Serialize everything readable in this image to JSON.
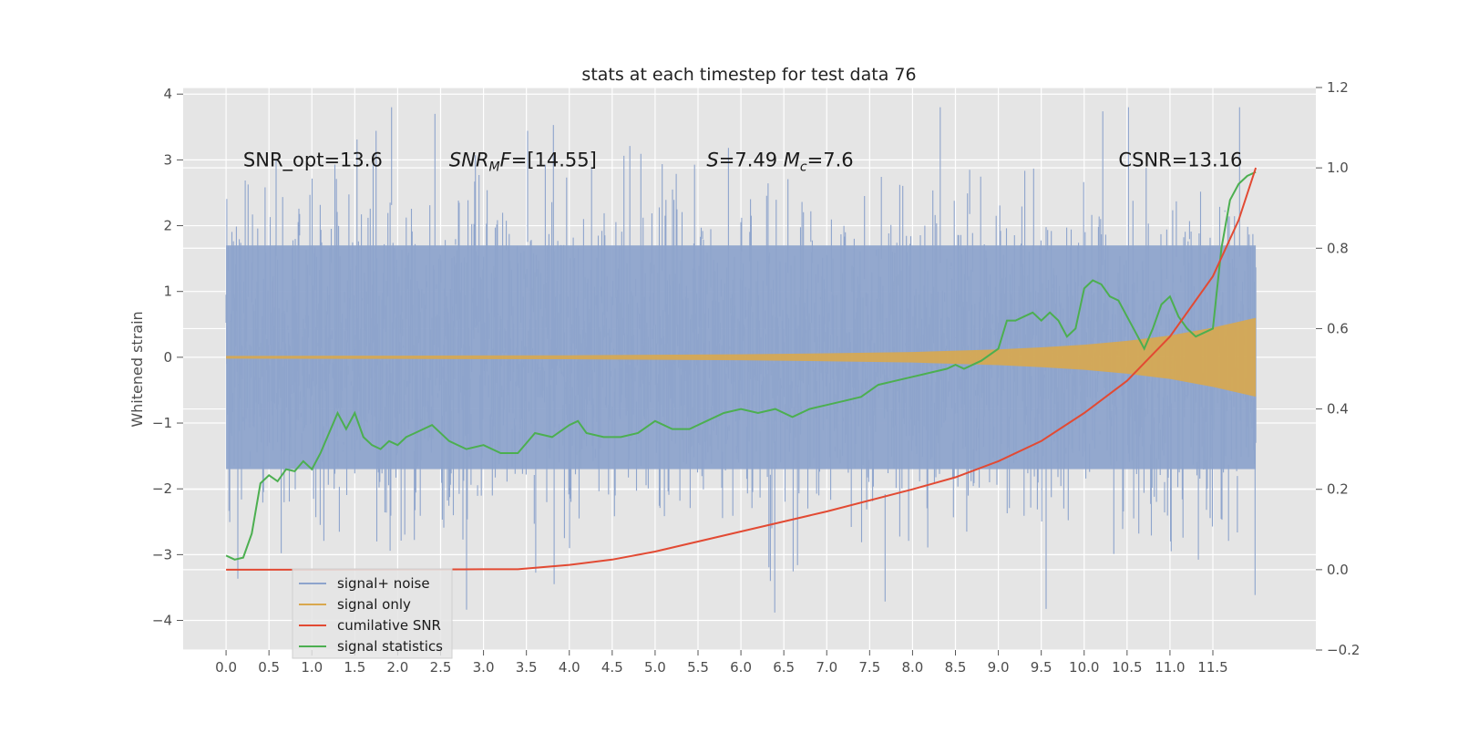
{
  "colors": {
    "background_plot": "#e5e5e5",
    "grid": "#ffffff",
    "noise": "#8ea4cc",
    "signal_only": "#d9a84e",
    "cumulative_snr": "#e24a33",
    "signal_statistics": "#4caf50"
  },
  "chart_data": {
    "type": "line",
    "title": "stats at each timestep for test data 76",
    "ylabel": "Whitened strain",
    "xlabel": "",
    "xlim": [
      -0.5,
      12.7
    ],
    "ylim": [
      -4.45,
      4.1
    ],
    "ylim_right": [
      -0.2,
      1.2
    ],
    "x_ticks": [
      0.0,
      0.5,
      1.0,
      1.5,
      2.0,
      2.5,
      3.0,
      3.5,
      4.0,
      4.5,
      5.0,
      5.5,
      6.0,
      6.5,
      7.0,
      7.5,
      8.0,
      8.5,
      9.0,
      9.5,
      10.0,
      10.5,
      11.0,
      11.5
    ],
    "x_tick_labels": [
      "0.0",
      "0.5",
      "1.0",
      "1.5",
      "2.0",
      "2.5",
      "3.0",
      "3.5",
      "4.0",
      "4.5",
      "5.0",
      "5.5",
      "6.0",
      "6.5",
      "7.0",
      "7.5",
      "8.0",
      "8.5",
      "9.0",
      "9.5",
      "10.0",
      "10.5",
      "11.0",
      "11.5"
    ],
    "y_ticks_left": [
      4,
      3,
      2,
      1,
      0,
      -1,
      -2,
      -3,
      -4
    ],
    "y_tick_labels_left": [
      "4",
      "3",
      "2",
      "1",
      "0",
      "−1",
      "−2",
      "−3",
      "−4"
    ],
    "y_ticks_right": [
      1.2,
      1.0,
      0.8,
      0.6,
      0.4,
      0.2,
      0.0,
      -0.2
    ],
    "y_tick_labels_right": [
      "1.2",
      "1.0",
      "0.8",
      "0.6",
      "0.4",
      "0.2",
      "0.0",
      "−0.2"
    ],
    "grid": true,
    "legend_placement": "lower-left",
    "annotations": [
      {
        "id": "snr-opt",
        "text": "SNR_opt=13.6",
        "x": 0.2,
        "y": 3.0
      },
      {
        "id": "snr-mf",
        "text": "SNR_MF=[14.55]",
        "x": 2.6,
        "y": 3.0
      },
      {
        "id": "s-mc",
        "text": "S=7.49   M_c=7.6",
        "x": 5.6,
        "y": 3.0
      },
      {
        "id": "csnr",
        "text": "CSNR=13.16",
        "x": 10.4,
        "y": 3.0
      }
    ],
    "series": [
      {
        "name": "signal+ noise",
        "axis": "left",
        "kind": "noise-band",
        "x_range": [
          0.0,
          12.0
        ],
        "typical_band": [
          -1.7,
          1.7
        ],
        "extremes": [
          -4.1,
          3.8
        ],
        "note_values": "dense random strain samples"
      },
      {
        "name": "signal only",
        "axis": "left",
        "kind": "chirp-envelope",
        "x": [
          0.0,
          2.0,
          4.0,
          6.0,
          7.0,
          8.0,
          9.0,
          9.5,
          10.0,
          10.5,
          11.0,
          11.5,
          12.0
        ],
        "amplitude": [
          0.02,
          0.025,
          0.03,
          0.045,
          0.06,
          0.08,
          0.12,
          0.15,
          0.19,
          0.25,
          0.33,
          0.45,
          0.6
        ]
      },
      {
        "name": "cumilative SNR",
        "axis": "right",
        "x": [
          0.0,
          1.0,
          2.0,
          3.0,
          3.4,
          4.0,
          4.5,
          5.0,
          6.0,
          7.0,
          8.0,
          8.5,
          9.0,
          9.5,
          10.0,
          10.5,
          11.0,
          11.5,
          11.8,
          12.0
        ],
        "values": [
          0.0,
          0.0,
          0.0005,
          0.001,
          0.001,
          0.012,
          0.025,
          0.045,
          0.095,
          0.145,
          0.2,
          0.23,
          0.27,
          0.32,
          0.39,
          0.47,
          0.58,
          0.73,
          0.87,
          1.0
        ]
      },
      {
        "name": "signal statistics",
        "axis": "right",
        "x": [
          0.0,
          0.1,
          0.2,
          0.3,
          0.4,
          0.5,
          0.6,
          0.7,
          0.8,
          0.9,
          1.0,
          1.1,
          1.2,
          1.3,
          1.4,
          1.5,
          1.6,
          1.7,
          1.8,
          1.9,
          2.0,
          2.1,
          2.2,
          2.4,
          2.6,
          2.8,
          3.0,
          3.2,
          3.4,
          3.6,
          3.8,
          4.0,
          4.1,
          4.2,
          4.4,
          4.6,
          4.8,
          5.0,
          5.2,
          5.4,
          5.6,
          5.8,
          6.0,
          6.2,
          6.4,
          6.6,
          6.8,
          7.0,
          7.2,
          7.4,
          7.6,
          7.8,
          8.0,
          8.2,
          8.4,
          8.5,
          8.6,
          8.8,
          9.0,
          9.1,
          9.2,
          9.3,
          9.4,
          9.5,
          9.6,
          9.7,
          9.8,
          9.9,
          10.0,
          10.1,
          10.2,
          10.3,
          10.4,
          10.5,
          10.6,
          10.7,
          10.8,
          10.9,
          11.0,
          11.1,
          11.2,
          11.3,
          11.5,
          11.6,
          11.7,
          11.8,
          11.9,
          12.0
        ],
        "values": [
          0.035,
          0.025,
          0.03,
          0.09,
          0.215,
          0.235,
          0.22,
          0.25,
          0.245,
          0.27,
          0.25,
          0.29,
          0.34,
          0.39,
          0.35,
          0.39,
          0.33,
          0.31,
          0.3,
          0.32,
          0.31,
          0.33,
          0.34,
          0.36,
          0.32,
          0.3,
          0.31,
          0.29,
          0.29,
          0.34,
          0.33,
          0.36,
          0.37,
          0.34,
          0.33,
          0.33,
          0.34,
          0.37,
          0.35,
          0.35,
          0.37,
          0.39,
          0.4,
          0.39,
          0.4,
          0.38,
          0.4,
          0.41,
          0.42,
          0.43,
          0.46,
          0.47,
          0.48,
          0.49,
          0.5,
          0.51,
          0.5,
          0.52,
          0.55,
          0.62,
          0.62,
          0.63,
          0.64,
          0.62,
          0.64,
          0.62,
          0.58,
          0.6,
          0.7,
          0.72,
          0.71,
          0.68,
          0.67,
          0.63,
          0.59,
          0.55,
          0.6,
          0.66,
          0.68,
          0.63,
          0.6,
          0.58,
          0.6,
          0.8,
          0.92,
          0.96,
          0.98,
          0.99
        ]
      }
    ]
  }
}
